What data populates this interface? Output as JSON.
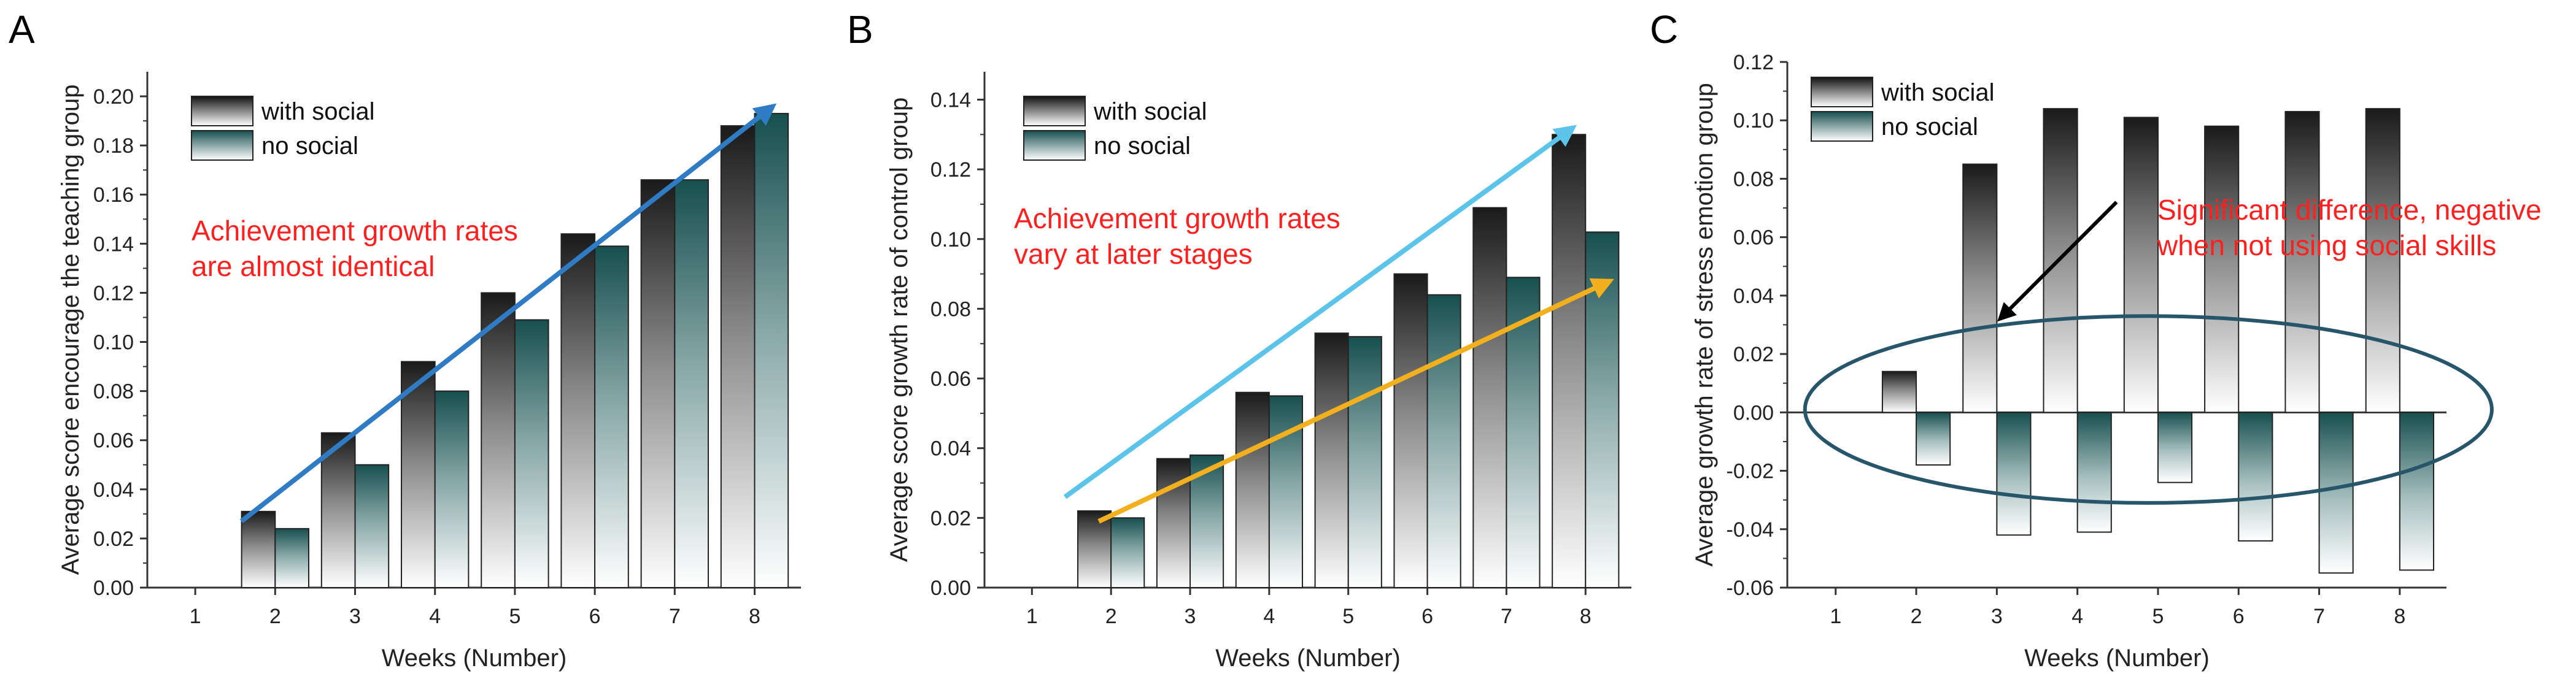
{
  "colors": {
    "arrow_blue": "#2f7bc4",
    "arrow_light_blue": "#5bc4e8",
    "arrow_gold": "#f2b01e",
    "arrow_black": "#000000",
    "ellipse": "#27566b",
    "annotation": "#ff2020"
  },
  "chart_data": [
    {
      "panel": "A",
      "type": "bar",
      "title": "",
      "xlabel": "Weeks (Number)",
      "ylabel": "Average score encourage the teaching group",
      "x_ticks": [
        "1",
        "2",
        "3",
        "4",
        "5",
        "6",
        "7",
        "8"
      ],
      "y_ticks": [
        "0.00",
        "0.02",
        "0.04",
        "0.06",
        "0.08",
        "0.10",
        "0.12",
        "0.14",
        "0.16",
        "0.18",
        "0.20"
      ],
      "ylim": [
        0,
        0.21
      ],
      "categories": [
        "2",
        "3",
        "4",
        "5",
        "6",
        "7",
        "8"
      ],
      "series": [
        {
          "name": "with social",
          "values": [
            0.031,
            0.063,
            0.092,
            0.12,
            0.144,
            0.166,
            0.188
          ]
        },
        {
          "name": "no social",
          "values": [
            0.024,
            0.05,
            0.08,
            0.109,
            0.139,
            0.166,
            0.193
          ]
        }
      ],
      "annotation": [
        "Achievement growth rates",
        "are almost identical"
      ],
      "legend_position": "top-left"
    },
    {
      "panel": "B",
      "type": "bar",
      "title": "",
      "xlabel": "Weeks (Number)",
      "ylabel": "Average score growth rate of control group",
      "x_ticks": [
        "1",
        "2",
        "3",
        "4",
        "5",
        "6",
        "7",
        "8"
      ],
      "y_ticks": [
        "0.00",
        "0.02",
        "0.04",
        "0.06",
        "0.08",
        "0.10",
        "0.12",
        "0.14"
      ],
      "ylim": [
        0,
        0.148
      ],
      "categories": [
        "2",
        "3",
        "4",
        "5",
        "6",
        "7",
        "8"
      ],
      "series": [
        {
          "name": "with social",
          "values": [
            0.022,
            0.037,
            0.056,
            0.073,
            0.09,
            0.109,
            0.13
          ]
        },
        {
          "name": "no social",
          "values": [
            0.02,
            0.038,
            0.055,
            0.072,
            0.084,
            0.089,
            0.102
          ]
        }
      ],
      "annotation": [
        "Achievement growth rates",
        "vary at later stages"
      ],
      "legend_position": "top-left"
    },
    {
      "panel": "C",
      "type": "bar",
      "title": "",
      "xlabel": "Weeks (Number)",
      "ylabel": "Average growth rate of stress emotion group",
      "x_ticks": [
        "1",
        "2",
        "3",
        "4",
        "5",
        "6",
        "7",
        "8"
      ],
      "y_ticks": [
        "-0.06",
        "-0.04",
        "-0.02",
        "0.00",
        "0.02",
        "0.04",
        "0.06",
        "0.08",
        "0.10",
        "0.12"
      ],
      "ylim": [
        -0.06,
        0.12
      ],
      "categories": [
        "2",
        "3",
        "4",
        "5",
        "6",
        "7",
        "8"
      ],
      "series": [
        {
          "name": "with social",
          "values": [
            0.014,
            0.085,
            0.104,
            0.101,
            0.098,
            0.103,
            0.104
          ]
        },
        {
          "name": "no social",
          "values": [
            -0.018,
            -0.042,
            -0.041,
            -0.024,
            -0.044,
            -0.055,
            -0.054
          ]
        }
      ],
      "annotation": [
        "Significant difference, negative",
        "when not using social skills"
      ],
      "legend_position": "top-left"
    }
  ]
}
